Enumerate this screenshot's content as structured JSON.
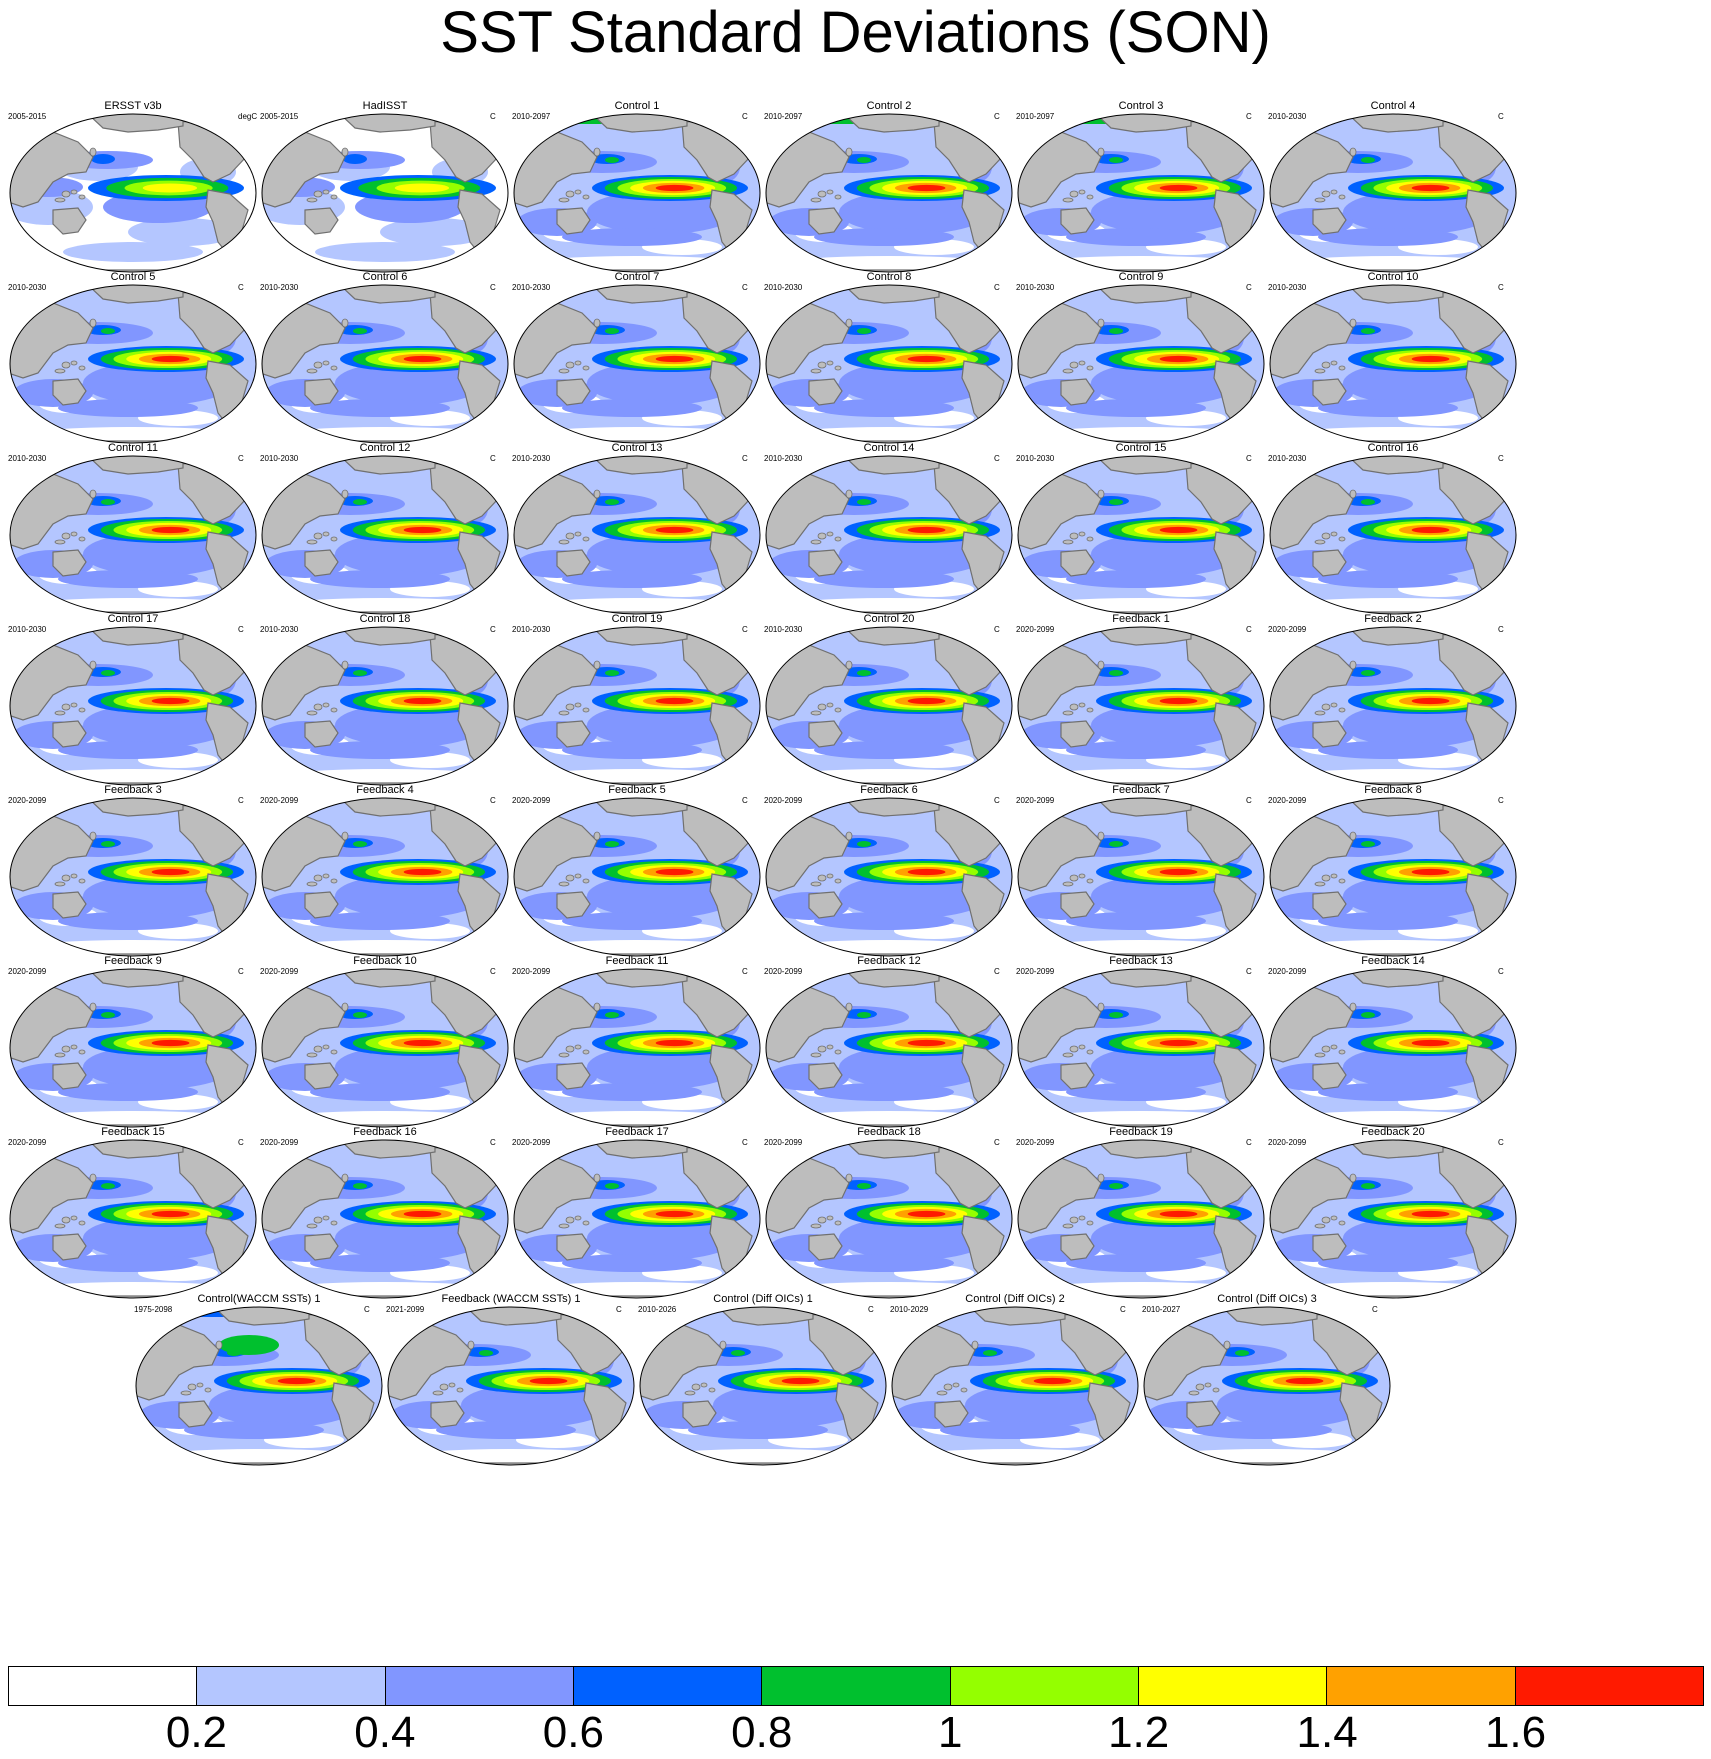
{
  "title": "SST Standard Deviations (SON)",
  "colors": {
    "land": "#bdbdbd",
    "coast": "#707070",
    "contour_levels": [
      "#ffffff",
      "#b4c6ff",
      "#8196ff",
      "#0061ff",
      "#00c02e",
      "#94ff00",
      "#ffff00",
      "#ffa100",
      "#ff1a00"
    ]
  },
  "chart_data": {
    "type": "heatmap",
    "title": "SST Standard Deviations (SON)",
    "colorbar": {
      "tick_labels": [
        "0.2",
        "0.4",
        "0.6",
        "0.8",
        "1",
        "1.2",
        "1.4",
        "1.6"
      ],
      "levels": [
        0.2,
        0.4,
        0.6,
        0.8,
        1.0,
        1.2,
        1.4,
        1.6
      ],
      "colors": [
        "#ffffff",
        "#b4c6ff",
        "#8196ff",
        "#0061ff",
        "#00c02e",
        "#94ff00",
        "#ffff00",
        "#ffa100",
        "#ff1a00"
      ]
    },
    "panels": [
      {
        "title": "ERSST v3b",
        "period": "2005-2015",
        "unit": "degC",
        "nino_peak": 1.2
      },
      {
        "title": "HadISST",
        "period": "2005-2015",
        "unit": "C",
        "nino_peak": 1.2
      },
      {
        "title": "Control 1",
        "period": "2010-2097",
        "unit": "C",
        "nino_peak": 1.7
      },
      {
        "title": "Control 2",
        "period": "2010-2097",
        "unit": "C",
        "nino_peak": 1.7
      },
      {
        "title": "Control 3",
        "period": "2010-2097",
        "unit": "C",
        "nino_peak": 1.7
      },
      {
        "title": "Control 4",
        "period": "2010-2030",
        "unit": "C",
        "nino_peak": 1.7
      },
      {
        "title": "Control 5",
        "period": "2010-2030",
        "unit": "C",
        "nino_peak": 1.7
      },
      {
        "title": "Control 6",
        "period": "2010-2030",
        "unit": "C",
        "nino_peak": 1.7
      },
      {
        "title": "Control 7",
        "period": "2010-2030",
        "unit": "C",
        "nino_peak": 1.7
      },
      {
        "title": "Control 8",
        "period": "2010-2030",
        "unit": "C",
        "nino_peak": 1.7
      },
      {
        "title": "Control 9",
        "period": "2010-2030",
        "unit": "C",
        "nino_peak": 1.7
      },
      {
        "title": "Control 10",
        "period": "2010-2030",
        "unit": "C",
        "nino_peak": 1.7
      },
      {
        "title": "Control 11",
        "period": "2010-2030",
        "unit": "C",
        "nino_peak": 1.7
      },
      {
        "title": "Control 12",
        "period": "2010-2030",
        "unit": "C",
        "nino_peak": 1.7
      },
      {
        "title": "Control 13",
        "period": "2010-2030",
        "unit": "C",
        "nino_peak": 1.7
      },
      {
        "title": "Control 14",
        "period": "2010-2030",
        "unit": "C",
        "nino_peak": 1.7
      },
      {
        "title": "Control 15",
        "period": "2010-2030",
        "unit": "C",
        "nino_peak": 1.7
      },
      {
        "title": "Control 16",
        "period": "2010-2030",
        "unit": "C",
        "nino_peak": 1.7
      },
      {
        "title": "Control 17",
        "period": "2010-2030",
        "unit": "C",
        "nino_peak": 1.7
      },
      {
        "title": "Control 18",
        "period": "2010-2030",
        "unit": "C",
        "nino_peak": 1.7
      },
      {
        "title": "Control 19",
        "period": "2010-2030",
        "unit": "C",
        "nino_peak": 1.7
      },
      {
        "title": "Control 20",
        "period": "2010-2030",
        "unit": "C",
        "nino_peak": 1.7
      },
      {
        "title": "Feedback 1",
        "period": "2020-2099",
        "unit": "C",
        "nino_peak": 1.7
      },
      {
        "title": "Feedback 2",
        "period": "2020-2099",
        "unit": "C",
        "nino_peak": 1.7
      },
      {
        "title": "Feedback 3",
        "period": "2020-2099",
        "unit": "C",
        "nino_peak": 1.7
      },
      {
        "title": "Feedback 4",
        "period": "2020-2099",
        "unit": "C",
        "nino_peak": 1.7
      },
      {
        "title": "Feedback 5",
        "period": "2020-2099",
        "unit": "C",
        "nino_peak": 1.7
      },
      {
        "title": "Feedback 6",
        "period": "2020-2099",
        "unit": "C",
        "nino_peak": 1.7
      },
      {
        "title": "Feedback 7",
        "period": "2020-2099",
        "unit": "C",
        "nino_peak": 1.7
      },
      {
        "title": "Feedback 8",
        "period": "2020-2099",
        "unit": "C",
        "nino_peak": 1.7
      },
      {
        "title": "Feedback 9",
        "period": "2020-2099",
        "unit": "C",
        "nino_peak": 1.7
      },
      {
        "title": "Feedback 10",
        "period": "2020-2099",
        "unit": "C",
        "nino_peak": 1.7
      },
      {
        "title": "Feedback 11",
        "period": "2020-2099",
        "unit": "C",
        "nino_peak": 1.7
      },
      {
        "title": "Feedback 12",
        "period": "2020-2099",
        "unit": "C",
        "nino_peak": 1.7
      },
      {
        "title": "Feedback 13",
        "period": "2020-2099",
        "unit": "C",
        "nino_peak": 1.7
      },
      {
        "title": "Feedback 14",
        "period": "2020-2099",
        "unit": "C",
        "nino_peak": 1.7
      },
      {
        "title": "Feedback 15",
        "period": "2020-2099",
        "unit": "C",
        "nino_peak": 1.7
      },
      {
        "title": "Feedback 16",
        "period": "2020-2099",
        "unit": "C",
        "nino_peak": 1.7
      },
      {
        "title": "Feedback 17",
        "period": "2020-2099",
        "unit": "C",
        "nino_peak": 1.7
      },
      {
        "title": "Feedback 18",
        "period": "2020-2099",
        "unit": "C",
        "nino_peak": 1.7
      },
      {
        "title": "Feedback 19",
        "period": "2020-2099",
        "unit": "C",
        "nino_peak": 1.7
      },
      {
        "title": "Feedback 20",
        "period": "2020-2099",
        "unit": "C",
        "nino_peak": 1.7
      },
      {
        "title": "Control(WACCM SSTs) 1",
        "period": "1975-2098",
        "unit": "C",
        "nino_peak": 1.7
      },
      {
        "title": "Feedback (WACCM SSTs) 1",
        "period": "2021-2099",
        "unit": "C",
        "nino_peak": 1.7
      },
      {
        "title": "Control (Diff OICs) 1",
        "period": "2010-2026",
        "unit": "C",
        "nino_peak": 1.7
      },
      {
        "title": "Control (Diff OICs) 2",
        "period": "2010-2029",
        "unit": "C",
        "nino_peak": 1.7
      },
      {
        "title": "Control (Diff OICs) 3",
        "period": "2010-2027",
        "unit": "C",
        "nino_peak": 1.7
      }
    ]
  }
}
